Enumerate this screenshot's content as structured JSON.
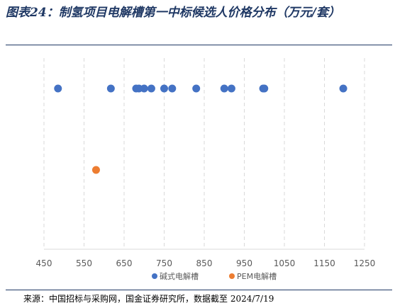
{
  "title": "图表24：制氢项目电解槽第一中标候选人价格分布（万元/套）",
  "source": "来源：中国招标与采购网，国金证券研究所，数据截至 2024/7/19",
  "chart_data": {
    "type": "scatter",
    "title": "",
    "xlabel": "",
    "ylabel": "",
    "xlim": [
      450,
      1250
    ],
    "xticks": [
      450,
      550,
      650,
      750,
      850,
      950,
      1050,
      1150,
      1250
    ],
    "grid": "vertical dashed",
    "legend_position": "bottom",
    "series": [
      {
        "name": "碱式电解槽",
        "color": "#4472c4",
        "row": 1,
        "values": [
          485,
          617,
          680,
          687,
          700,
          718,
          750,
          770,
          830,
          900,
          918,
          997,
          1000,
          1197
        ]
      },
      {
        "name": "PEM电解槽",
        "color": "#ed7d31",
        "row": 2,
        "values": [
          580
        ]
      }
    ]
  }
}
